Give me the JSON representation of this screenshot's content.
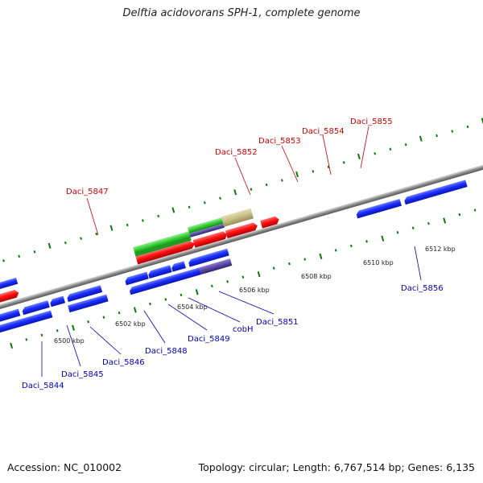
{
  "title": "Delftia acidovorans SPH-1, complete genome",
  "footer": {
    "accession": "Accession: NC_010002",
    "summary": "Topology: circular; Length: 6,767,514 bp; Genes: 6,135"
  },
  "colors": {
    "forward_cds": "#ff1010",
    "reverse_cds": "#1030ff",
    "gene_green": "#33cc33",
    "gene_khaki": "#c8bd86",
    "gene_purple": "#5a4aa0",
    "red_label": "#cc0000",
    "blue_label": "#0000bb",
    "tick": "#0a7a0a",
    "backbone": "#9a9a9a"
  },
  "scale_labels": [
    "6500 kbp",
    "6502 kbp",
    "6504 kbp",
    "6506 kbp",
    "6508 kbp",
    "6510 kbp",
    "6512 kbp"
  ],
  "top_labels": [
    "Daci_5847",
    "Daci_5852",
    "Daci_5853",
    "Daci_5854",
    "Daci_5855"
  ],
  "bottom_labels": [
    "Daci_5844",
    "Daci_5845",
    "Daci_5846",
    "Daci_5848",
    "Daci_5849",
    "cobH",
    "Daci_5851",
    "Daci_5856"
  ]
}
